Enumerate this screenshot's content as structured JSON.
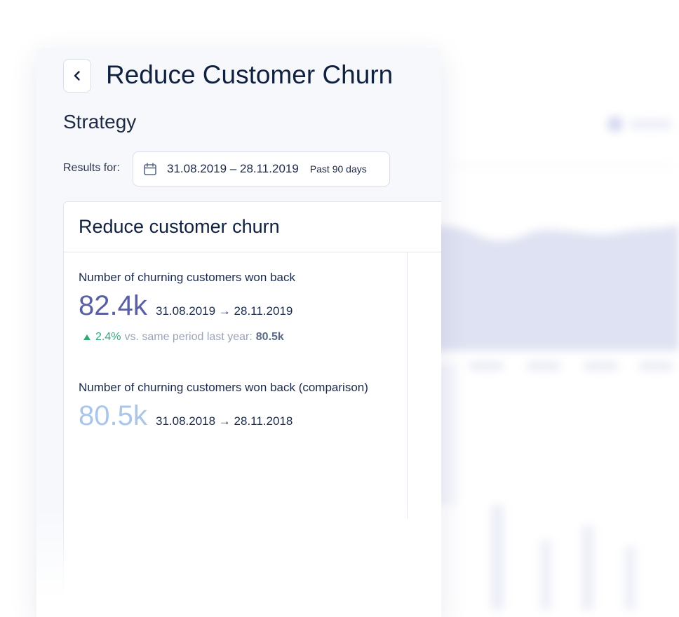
{
  "header": {
    "title": "Reduce Customer Churn",
    "back_icon": "chevron-left-icon"
  },
  "section_label": "Strategy",
  "filter": {
    "results_label": "Results for:",
    "date_range": "31.08.2019 – 28.11.2019",
    "period_hint": "Past 90 days",
    "calendar_icon": "calendar-icon"
  },
  "card": {
    "title": "Reduce customer churn",
    "metrics": [
      {
        "label": "Number of churning customers won back",
        "value": "82.4k",
        "range": "31.08.2019 → 28.11.2019",
        "color": "#5a5fa3"
      },
      {
        "label": "Number of churning customers won back (comparison)",
        "value": "80.5k",
        "range": "31.08.2018 → 28.11.2018",
        "color": "#a9c6ea"
      }
    ],
    "change": {
      "direction_icon": "triangle-up-icon",
      "percent": "2.4%",
      "text": "vs. same period last year:",
      "previous_value": "80.5k",
      "color": "#2fa877"
    }
  }
}
